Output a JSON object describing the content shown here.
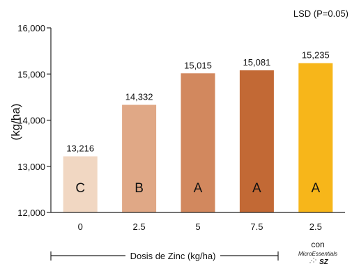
{
  "chart_data": {
    "type": "bar",
    "title": "",
    "corner_note": "LSD (P=0.05)",
    "ylabel": "(kg/ha)",
    "xlabel": "Dosis de Zinc (kg/ha)",
    "ylim": [
      12000,
      16000
    ],
    "yticks": [
      12000,
      13000,
      14000,
      15000,
      16000
    ],
    "ytick_labels": [
      "12,000",
      "13,000",
      "14,000",
      "15,000",
      "16,000"
    ],
    "categories": [
      "0",
      "2.5",
      "5",
      "7.5",
      "2.5"
    ],
    "values": [
      13216,
      14332,
      15015,
      15081,
      15235
    ],
    "value_labels": [
      "13,216",
      "14,332",
      "15,015",
      "15,081",
      "15,235"
    ],
    "letters": [
      "C",
      "B",
      "A",
      "A",
      "A"
    ],
    "colors": [
      "#f1d7c2",
      "#e0a886",
      "#d2885e",
      "#c26935",
      "#f7b61a"
    ],
    "grid": false,
    "side_label": {
      "con": "con",
      "brand_line1": "MicroEssentials",
      "brand_line2": "SZ"
    }
  }
}
